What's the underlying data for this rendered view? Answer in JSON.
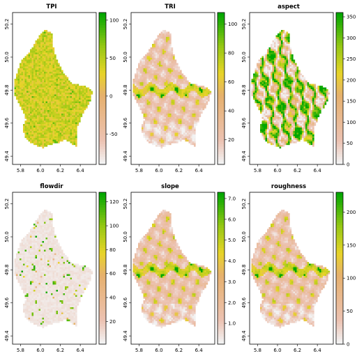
{
  "chart_data": [
    {
      "type": "heatmap",
      "title": "TPI",
      "xticks": [
        "5.8",
        "6.0",
        "6.2",
        "6.4"
      ],
      "yticks": [
        "49.4",
        "49.6",
        "49.8",
        "50.0",
        "50.2"
      ],
      "colorbar": {
        "min": -90,
        "max": 110,
        "ticks": [
          100,
          50,
          0,
          -50
        ],
        "labels": [
          "100",
          "50",
          "0",
          "-50"
        ]
      },
      "palette": "terrain",
      "pattern": "noise",
      "typical": 0.65
    },
    {
      "type": "heatmap",
      "title": "TRI",
      "xticks": [
        "5.8",
        "6.0",
        "6.2",
        "6.4"
      ],
      "yticks": [
        "49.4",
        "49.6",
        "49.8",
        "50.0",
        "50.2"
      ],
      "colorbar": {
        "min": 3,
        "max": 108,
        "ticks": [
          100,
          80,
          60,
          40,
          20
        ],
        "labels": [
          "100",
          "80",
          "60",
          "40",
          "20"
        ]
      },
      "palette": "terrain",
      "pattern": "streams",
      "typical": 0.18
    },
    {
      "type": "heatmap",
      "title": "aspect",
      "xticks": [
        "5.8",
        "6.0",
        "6.2",
        "6.4"
      ],
      "yticks": [
        "49.4",
        "49.6",
        "49.8",
        "50.0",
        "50.2"
      ],
      "colorbar": {
        "min": 0,
        "max": 360,
        "ticks": [
          350,
          300,
          250,
          200,
          150,
          100,
          50,
          0
        ],
        "labels": [
          "350",
          "300",
          "250",
          "200",
          "150",
          "100",
          "50",
          "0"
        ]
      },
      "palette": "terrain",
      "pattern": "aspect",
      "typical": 0.5
    },
    {
      "type": "heatmap",
      "title": "flowdir",
      "xticks": [
        "5.8",
        "6.0",
        "6.2",
        "6.4"
      ],
      "yticks": [
        "49.4",
        "49.6",
        "49.8",
        "50.0",
        "50.2"
      ],
      "colorbar": {
        "min": 1,
        "max": 128,
        "ticks": [
          120,
          100,
          80,
          60,
          40,
          20
        ],
        "labels": [
          "120",
          "100",
          "80",
          "60",
          "40",
          "20"
        ]
      },
      "palette": "terrain",
      "pattern": "flow",
      "typical": 0.05
    },
    {
      "type": "heatmap",
      "title": "slope",
      "xticks": [
        "5.8",
        "6.0",
        "6.2",
        "6.4"
      ],
      "yticks": [
        "49.4",
        "49.6",
        "49.8",
        "50.0",
        "50.2"
      ],
      "colorbar": {
        "min": 0,
        "max": 7.3,
        "ticks": [
          7.0,
          6.0,
          5.0,
          4.0,
          3.0,
          2.0,
          1.0
        ],
        "labels": [
          "7.0",
          "6.0",
          "5.0",
          "4.0",
          "3.0",
          "2.0",
          "1.0"
        ]
      },
      "palette": "terrain",
      "pattern": "streams",
      "typical": 0.2
    },
    {
      "type": "heatmap",
      "title": "roughness",
      "xticks": [
        "5.8",
        "6.0",
        "6.2",
        "6.4"
      ],
      "yticks": [
        "49.4",
        "49.6",
        "49.8",
        "50.0",
        "50.2"
      ],
      "colorbar": {
        "min": 0,
        "max": 230,
        "ticks": [
          200,
          150,
          100,
          50,
          0
        ],
        "labels": [
          "200",
          "150",
          "100",
          "50",
          "0"
        ]
      },
      "palette": "terrain",
      "pattern": "streams",
      "typical": 0.2
    }
  ]
}
